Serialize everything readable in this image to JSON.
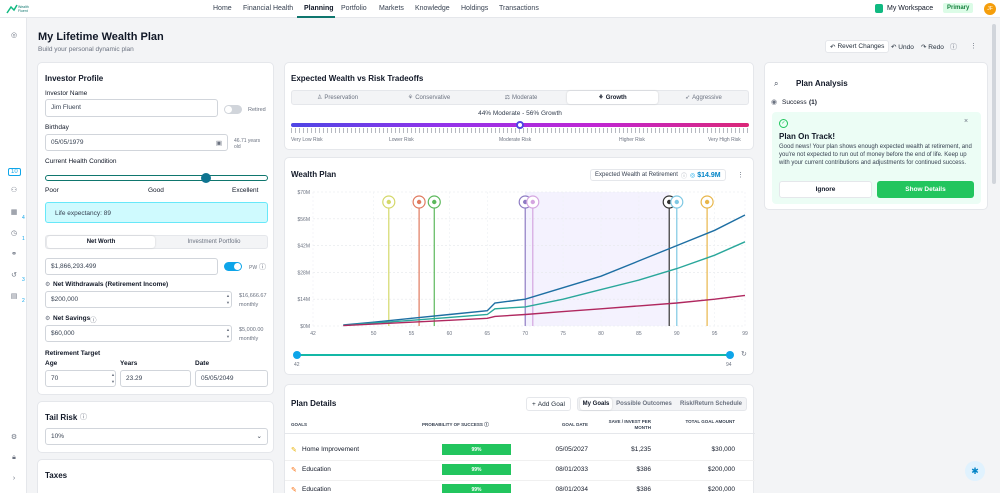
{
  "brand": {
    "logo_text": "Wealth Fluent"
  },
  "nav": {
    "items": [
      "Home",
      "Financial Health",
      "Planning",
      "Portfolio",
      "Markets",
      "Knowledge",
      "Holdings",
      "Transactions"
    ],
    "active": "Planning",
    "workspace": "My Workspace",
    "workspace_badge": "Primary",
    "avatar_initials": "JF"
  },
  "sidebar": {
    "badges": [
      "10",
      "4",
      "1",
      "3",
      "2"
    ]
  },
  "page": {
    "title": "My Lifetime Wealth Plan",
    "subtitle": "Build your personal dynamic plan",
    "revert_label": "Revert Changes",
    "undo_label": "Undo",
    "redo_label": "Redo"
  },
  "investor": {
    "title": "Investor Profile",
    "name_label": "Investor Name",
    "name_value": "Jim Fluent",
    "retired_label": "Retired",
    "birthday_label": "Birthday",
    "birthday_value": "05/05/1979",
    "age_note": "46.71 years old",
    "health_label": "Current Health Condition",
    "health_ticks": [
      "Poor",
      "Good",
      "Excellent"
    ],
    "health_level": 0.72,
    "life_expectancy": "Life expectancy: 89",
    "tabs": [
      "Net Worth",
      "Investment Portfolio"
    ],
    "net_worth_value": "$1,866,293.499",
    "pw_label": "PW",
    "withdrawals_label": "Net Withdrawals (Retirement Income)",
    "withdrawals_value": "$200,000",
    "withdrawals_monthly": "$16,666.67",
    "monthly_label": "monthly",
    "savings_label": "Net Savings",
    "savings_value": "$60,000",
    "savings_monthly": "$5,000.00",
    "retirement_target_label": "Retirement Target",
    "age_label": "Age",
    "years_label": "Years",
    "date_label": "Date",
    "age_value": "70",
    "years_value": "23.29",
    "date_value": "05/05/2049"
  },
  "tail_risk": {
    "title": "Tail Risk",
    "value": "10%"
  },
  "taxes": {
    "title": "Taxes"
  },
  "tradeoffs": {
    "title": "Expected Wealth vs Risk Tradeoffs",
    "options": [
      "Preservation",
      "Conservative",
      "Moderate",
      "Growth",
      "Aggressive"
    ],
    "active": "Growth",
    "allocation_text": "44% Moderate - 56% Growth",
    "risk_labels": [
      "Very Low Risk",
      "Lower Risk",
      "Moderate Risk",
      "Higher Risk",
      "Very High Risk"
    ],
    "risk_level": 0.5
  },
  "wealth_plan": {
    "title": "Wealth Plan",
    "expected_label": "Expected Wealth at Retirement",
    "expected_value": "$14.9M",
    "range_start": "42",
    "range_end": "94"
  },
  "chart_data": {
    "type": "line",
    "xlim": [
      42,
      99
    ],
    "ylim": [
      0,
      70
    ],
    "y_ticks": [
      "$0M",
      "$14M",
      "$28M",
      "$42M",
      "$56M",
      "$70M"
    ],
    "x_ticks": [
      42,
      50,
      55,
      60,
      65,
      70,
      75,
      80,
      85,
      90,
      95,
      99
    ],
    "series": [
      {
        "color": "#1e6fa3",
        "x": [
          46,
          50,
          55,
          60,
          65,
          66,
          70,
          75,
          80,
          85,
          90,
          95,
          99
        ],
        "y": [
          0.5,
          2,
          4,
          6,
          8,
          12,
          14,
          20,
          26,
          34,
          42,
          50,
          58
        ]
      },
      {
        "color": "#2aa79b",
        "x": [
          46,
          50,
          55,
          60,
          65,
          66,
          70,
          75,
          80,
          85,
          90,
          95,
          99
        ],
        "y": [
          0.3,
          1.5,
          3,
          4.5,
          6,
          9,
          10,
          14,
          19,
          24,
          30,
          37,
          44
        ]
      },
      {
        "color": "#b0285f",
        "x": [
          46,
          50,
          55,
          60,
          65,
          66,
          70,
          75,
          80,
          85,
          90,
          95,
          99
        ],
        "y": [
          0.2,
          1,
          2,
          3,
          4,
          5,
          6,
          7.5,
          9,
          10.5,
          12,
          14,
          16
        ]
      }
    ],
    "goal_markers": [
      {
        "x": 52,
        "color": "#d4d86a"
      },
      {
        "x": 56,
        "color": "#e07a5f"
      },
      {
        "x": 58,
        "color": "#5cb85c"
      },
      {
        "x": 70,
        "color": "#8e7cc3"
      },
      {
        "x": 71,
        "color": "#d4a5e0"
      },
      {
        "x": 89,
        "color": "#333333"
      },
      {
        "x": 90,
        "color": "#7ec8e3"
      },
      {
        "x": 94,
        "color": "#e8b64a"
      }
    ],
    "retirement_band": [
      70,
      89
    ]
  },
  "plan_details": {
    "title": "Plan Details",
    "add_goal": "Add Goal",
    "tabs": [
      "My Goals",
      "Possible Outcomes",
      "Risk/Return Schedule"
    ],
    "headers": [
      "Goals",
      "Probability of Success",
      "Goal Date",
      "Save / Invest per month",
      "Total Goal Amount"
    ],
    "rows": [
      {
        "goal": "Home Improvement",
        "prob": "99%",
        "date": "05/05/2027",
        "save": "$1,235",
        "total": "$30,000"
      },
      {
        "goal": "Education",
        "prob": "99%",
        "date": "08/01/2033",
        "save": "$386",
        "total": "$200,000"
      },
      {
        "goal": "Education",
        "prob": "99%",
        "date": "08/01/2034",
        "save": "$386",
        "total": "$200,000"
      }
    ]
  },
  "analysis": {
    "title": "Plan Analysis",
    "success_label": "Success",
    "success_count": "(1)",
    "on_track_title": "Plan On Track!",
    "on_track_text": "Good news! Your plan shows enough expected wealth at retirement, and you're not expected to run out of money before the end of life. Keep up with your current contributions and adjustments for continued success.",
    "ignore_label": "Ignore",
    "details_label": "Show Details"
  }
}
